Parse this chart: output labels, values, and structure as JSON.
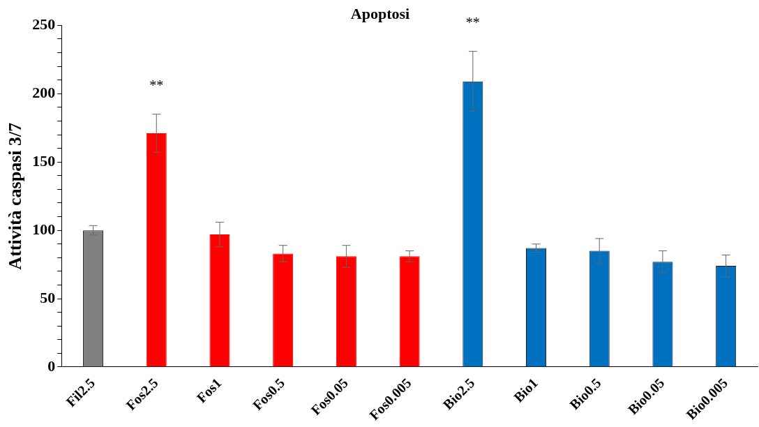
{
  "chart_data": {
    "type": "bar",
    "title": "Apoptosi",
    "ylabel": "Attività caspasi 3/7",
    "categories": [
      "Fil2.5",
      "Fos2.5",
      "Fos1",
      "Fos0.5",
      "Fos0.05",
      "Fos0.005",
      "Bio2.5",
      "Bio1",
      "Bio0.5",
      "Bio0.05",
      "Bio0.005"
    ],
    "values": [
      100,
      171,
      97,
      83,
      81,
      81,
      209,
      87,
      85,
      77,
      74
    ],
    "errors": [
      3.5,
      14,
      9,
      6,
      8,
      4,
      22,
      3,
      9,
      8,
      8
    ],
    "colors": [
      "#808080",
      "#ff0000",
      "#ff0000",
      "#ff0000",
      "#ff0000",
      "#ff0000",
      "#0070c0",
      "#0070c0",
      "#0070c0",
      "#0070c0",
      "#0070c0"
    ],
    "ylim": [
      0,
      250
    ],
    "yticks": [
      0,
      {
        "value": 10,
        "label": null
      },
      {
        "value": 20,
        "label": null
      },
      {
        "value": 30,
        "label": null
      },
      {
        "value": 40,
        "label": null
      },
      50,
      {
        "value": 60,
        "label": null
      },
      {
        "value": 70,
        "label": null
      },
      {
        "value": 80,
        "label": null
      },
      {
        "value": 90,
        "label": null
      },
      100,
      {
        "value": 110,
        "label": null
      },
      {
        "value": 120,
        "label": null
      },
      {
        "value": 130,
        "label": null
      },
      {
        "value": 140,
        "label": null
      },
      150,
      {
        "value": 160,
        "label": null
      },
      {
        "value": 170,
        "label": null
      },
      {
        "value": 180,
        "label": null
      },
      {
        "value": 190,
        "label": null
      },
      200,
      {
        "value": 210,
        "label": null
      },
      {
        "value": 220,
        "label": null
      },
      {
        "value": 230,
        "label": null
      },
      {
        "value": 240,
        "label": null
      },
      250
    ],
    "annotations": [
      "**",
      "**"
    ],
    "grid": false,
    "legend": false
  }
}
